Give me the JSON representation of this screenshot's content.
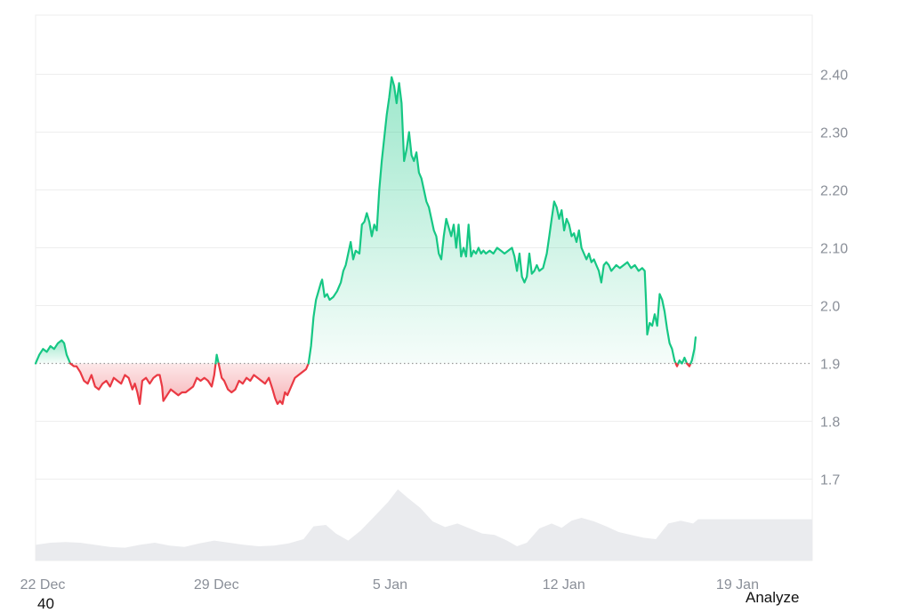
{
  "chart_data": {
    "type": "area",
    "baseline": 1.9,
    "ylim": [
      1.6,
      2.5
    ],
    "yticks": [
      "2.40",
      "2.30",
      "2.20",
      "2.10",
      "2.0",
      "1.9",
      "1.8",
      "1.7"
    ],
    "ytick_values": [
      2.4,
      2.3,
      2.2,
      2.1,
      2.0,
      1.9,
      1.8,
      1.7
    ],
    "xticks": [
      "22 Dec",
      "29 Dec",
      "5 Jan",
      "12 Jan",
      "19 Jan"
    ],
    "xtick_days": [
      0,
      7,
      14,
      21,
      28
    ],
    "xlim_days": [
      0,
      31.3
    ],
    "series": [
      {
        "values": [
          [
            0.0,
            1.9
          ],
          [
            0.15,
            1.915
          ],
          [
            0.3,
            1.925
          ],
          [
            0.45,
            1.92
          ],
          [
            0.6,
            1.93
          ],
          [
            0.75,
            1.925
          ],
          [
            0.9,
            1.935
          ],
          [
            1.05,
            1.94
          ],
          [
            1.15,
            1.935
          ],
          [
            1.25,
            1.915
          ],
          [
            1.4,
            1.9
          ],
          [
            1.55,
            1.895
          ],
          [
            1.65,
            1.895
          ],
          [
            1.8,
            1.885
          ],
          [
            1.95,
            1.87
          ],
          [
            2.1,
            1.865
          ],
          [
            2.25,
            1.88
          ],
          [
            2.4,
            1.86
          ],
          [
            2.55,
            1.855
          ],
          [
            2.7,
            1.865
          ],
          [
            2.85,
            1.87
          ],
          [
            3.0,
            1.86
          ],
          [
            3.15,
            1.875
          ],
          [
            3.3,
            1.87
          ],
          [
            3.45,
            1.865
          ],
          [
            3.6,
            1.88
          ],
          [
            3.75,
            1.875
          ],
          [
            3.9,
            1.855
          ],
          [
            4.0,
            1.865
          ],
          [
            4.1,
            1.85
          ],
          [
            4.2,
            1.83
          ],
          [
            4.3,
            1.87
          ],
          [
            4.45,
            1.875
          ],
          [
            4.6,
            1.865
          ],
          [
            4.75,
            1.875
          ],
          [
            4.9,
            1.88
          ],
          [
            5.0,
            1.88
          ],
          [
            5.1,
            1.86
          ],
          [
            5.15,
            1.835
          ],
          [
            5.3,
            1.845
          ],
          [
            5.45,
            1.855
          ],
          [
            5.6,
            1.85
          ],
          [
            5.75,
            1.845
          ],
          [
            5.9,
            1.85
          ],
          [
            6.05,
            1.85
          ],
          [
            6.2,
            1.855
          ],
          [
            6.35,
            1.86
          ],
          [
            6.5,
            1.875
          ],
          [
            6.65,
            1.87
          ],
          [
            6.8,
            1.875
          ],
          [
            6.95,
            1.87
          ],
          [
            7.1,
            1.86
          ],
          [
            7.2,
            1.88
          ],
          [
            7.3,
            1.915
          ],
          [
            7.4,
            1.895
          ],
          [
            7.5,
            1.875
          ],
          [
            7.6,
            1.87
          ],
          [
            7.75,
            1.855
          ],
          [
            7.9,
            1.85
          ],
          [
            8.05,
            1.855
          ],
          [
            8.2,
            1.87
          ],
          [
            8.35,
            1.865
          ],
          [
            8.5,
            1.875
          ],
          [
            8.65,
            1.87
          ],
          [
            8.8,
            1.88
          ],
          [
            8.95,
            1.875
          ],
          [
            9.1,
            1.87
          ],
          [
            9.25,
            1.865
          ],
          [
            9.4,
            1.875
          ],
          [
            9.55,
            1.855
          ],
          [
            9.65,
            1.84
          ],
          [
            9.75,
            1.83
          ],
          [
            9.85,
            1.835
          ],
          [
            9.95,
            1.83
          ],
          [
            10.05,
            1.85
          ],
          [
            10.15,
            1.845
          ],
          [
            10.3,
            1.86
          ],
          [
            10.45,
            1.875
          ],
          [
            10.6,
            1.88
          ],
          [
            10.75,
            1.885
          ],
          [
            10.9,
            1.89
          ],
          [
            11.0,
            1.9
          ],
          [
            11.1,
            1.93
          ],
          [
            11.2,
            1.98
          ],
          [
            11.3,
            2.01
          ],
          [
            11.4,
            2.025
          ],
          [
            11.5,
            2.04
          ],
          [
            11.55,
            2.045
          ],
          [
            11.65,
            2.015
          ],
          [
            11.75,
            2.02
          ],
          [
            11.85,
            2.01
          ],
          [
            12.0,
            2.015
          ],
          [
            12.15,
            2.025
          ],
          [
            12.3,
            2.04
          ],
          [
            12.4,
            2.06
          ],
          [
            12.5,
            2.07
          ],
          [
            12.6,
            2.09
          ],
          [
            12.7,
            2.11
          ],
          [
            12.8,
            2.08
          ],
          [
            12.9,
            2.095
          ],
          [
            13.05,
            2.09
          ],
          [
            13.15,
            2.14
          ],
          [
            13.25,
            2.145
          ],
          [
            13.35,
            2.16
          ],
          [
            13.45,
            2.145
          ],
          [
            13.55,
            2.12
          ],
          [
            13.65,
            2.14
          ],
          [
            13.75,
            2.13
          ],
          [
            13.85,
            2.2
          ],
          [
            13.95,
            2.25
          ],
          [
            14.05,
            2.29
          ],
          [
            14.15,
            2.33
          ],
          [
            14.25,
            2.36
          ],
          [
            14.35,
            2.395
          ],
          [
            14.45,
            2.38
          ],
          [
            14.55,
            2.35
          ],
          [
            14.65,
            2.385
          ],
          [
            14.75,
            2.35
          ],
          [
            14.85,
            2.25
          ],
          [
            14.95,
            2.27
          ],
          [
            15.05,
            2.3
          ],
          [
            15.15,
            2.26
          ],
          [
            15.25,
            2.25
          ],
          [
            15.35,
            2.265
          ],
          [
            15.45,
            2.23
          ],
          [
            15.55,
            2.22
          ],
          [
            15.65,
            2.2
          ],
          [
            15.75,
            2.18
          ],
          [
            15.85,
            2.17
          ],
          [
            15.95,
            2.15
          ],
          [
            16.05,
            2.13
          ],
          [
            16.15,
            2.12
          ],
          [
            16.25,
            2.09
          ],
          [
            16.35,
            2.08
          ],
          [
            16.45,
            2.12
          ],
          [
            16.55,
            2.15
          ],
          [
            16.65,
            2.135
          ],
          [
            16.75,
            2.12
          ],
          [
            16.85,
            2.14
          ],
          [
            16.95,
            2.1
          ],
          [
            17.05,
            2.14
          ],
          [
            17.15,
            2.085
          ],
          [
            17.25,
            2.1
          ],
          [
            17.35,
            2.085
          ],
          [
            17.45,
            2.14
          ],
          [
            17.55,
            2.085
          ],
          [
            17.65,
            2.095
          ],
          [
            17.75,
            2.09
          ],
          [
            17.85,
            2.1
          ],
          [
            17.95,
            2.09
          ],
          [
            18.05,
            2.095
          ],
          [
            18.15,
            2.09
          ],
          [
            18.3,
            2.095
          ],
          [
            18.45,
            2.09
          ],
          [
            18.6,
            2.1
          ],
          [
            18.75,
            2.095
          ],
          [
            18.9,
            2.09
          ],
          [
            19.05,
            2.095
          ],
          [
            19.2,
            2.1
          ],
          [
            19.3,
            2.085
          ],
          [
            19.4,
            2.06
          ],
          [
            19.5,
            2.09
          ],
          [
            19.6,
            2.05
          ],
          [
            19.7,
            2.04
          ],
          [
            19.8,
            2.05
          ],
          [
            19.9,
            2.09
          ],
          [
            20.0,
            2.055
          ],
          [
            20.1,
            2.06
          ],
          [
            20.2,
            2.07
          ],
          [
            20.3,
            2.06
          ],
          [
            20.45,
            2.065
          ],
          [
            20.6,
            2.09
          ],
          [
            20.7,
            2.12
          ],
          [
            20.8,
            2.15
          ],
          [
            20.9,
            2.18
          ],
          [
            21.0,
            2.17
          ],
          [
            21.1,
            2.15
          ],
          [
            21.2,
            2.165
          ],
          [
            21.3,
            2.13
          ],
          [
            21.4,
            2.15
          ],
          [
            21.5,
            2.14
          ],
          [
            21.6,
            2.12
          ],
          [
            21.7,
            2.125
          ],
          [
            21.8,
            2.11
          ],
          [
            21.9,
            2.13
          ],
          [
            22.0,
            2.1
          ],
          [
            22.1,
            2.09
          ],
          [
            22.2,
            2.08
          ],
          [
            22.3,
            2.09
          ],
          [
            22.4,
            2.075
          ],
          [
            22.5,
            2.08
          ],
          [
            22.6,
            2.07
          ],
          [
            22.7,
            2.06
          ],
          [
            22.8,
            2.04
          ],
          [
            22.9,
            2.07
          ],
          [
            23.0,
            2.075
          ],
          [
            23.1,
            2.07
          ],
          [
            23.2,
            2.06
          ],
          [
            23.3,
            2.065
          ],
          [
            23.4,
            2.07
          ],
          [
            23.55,
            2.065
          ],
          [
            23.7,
            2.07
          ],
          [
            23.85,
            2.075
          ],
          [
            24.0,
            2.065
          ],
          [
            24.15,
            2.07
          ],
          [
            24.3,
            2.06
          ],
          [
            24.45,
            2.065
          ],
          [
            24.55,
            2.06
          ],
          [
            24.6,
            2.01
          ],
          [
            24.65,
            1.95
          ],
          [
            24.75,
            1.97
          ],
          [
            24.85,
            1.965
          ],
          [
            24.95,
            1.985
          ],
          [
            25.05,
            1.965
          ],
          [
            25.15,
            2.02
          ],
          [
            25.25,
            2.01
          ],
          [
            25.35,
            1.99
          ],
          [
            25.45,
            1.96
          ],
          [
            25.55,
            1.935
          ],
          [
            25.65,
            1.925
          ],
          [
            25.75,
            1.905
          ],
          [
            25.85,
            1.895
          ],
          [
            25.95,
            1.905
          ],
          [
            26.05,
            1.9
          ],
          [
            26.15,
            1.91
          ],
          [
            26.25,
            1.9
          ],
          [
            26.35,
            1.895
          ],
          [
            26.45,
            1.905
          ],
          [
            26.55,
            1.925
          ],
          [
            26.6,
            1.945
          ]
        ]
      }
    ],
    "volume": [
      [
        0.0,
        0.22
      ],
      [
        0.6,
        0.25
      ],
      [
        1.2,
        0.26
      ],
      [
        1.8,
        0.25
      ],
      [
        2.4,
        0.22
      ],
      [
        3.0,
        0.19
      ],
      [
        3.6,
        0.18
      ],
      [
        4.2,
        0.22
      ],
      [
        4.8,
        0.25
      ],
      [
        5.4,
        0.21
      ],
      [
        6.0,
        0.19
      ],
      [
        6.6,
        0.24
      ],
      [
        7.2,
        0.28
      ],
      [
        7.8,
        0.25
      ],
      [
        8.4,
        0.22
      ],
      [
        9.0,
        0.2
      ],
      [
        9.6,
        0.21
      ],
      [
        10.2,
        0.24
      ],
      [
        10.8,
        0.3
      ],
      [
        11.2,
        0.48
      ],
      [
        11.7,
        0.5
      ],
      [
        12.1,
        0.38
      ],
      [
        12.6,
        0.28
      ],
      [
        13.1,
        0.42
      ],
      [
        13.6,
        0.6
      ],
      [
        14.2,
        0.82
      ],
      [
        14.6,
        1.0
      ],
      [
        15.0,
        0.88
      ],
      [
        15.5,
        0.74
      ],
      [
        16.0,
        0.55
      ],
      [
        16.5,
        0.47
      ],
      [
        17.0,
        0.52
      ],
      [
        17.5,
        0.45
      ],
      [
        18.0,
        0.38
      ],
      [
        18.5,
        0.36
      ],
      [
        19.0,
        0.28
      ],
      [
        19.4,
        0.2
      ],
      [
        19.8,
        0.25
      ],
      [
        20.3,
        0.45
      ],
      [
        20.8,
        0.52
      ],
      [
        21.2,
        0.46
      ],
      [
        21.6,
        0.56
      ],
      [
        22.0,
        0.6
      ],
      [
        22.5,
        0.55
      ],
      [
        23.0,
        0.48
      ],
      [
        23.5,
        0.4
      ],
      [
        24.0,
        0.36
      ],
      [
        24.5,
        0.32
      ],
      [
        25.0,
        0.3
      ],
      [
        25.5,
        0.52
      ],
      [
        26.0,
        0.56
      ],
      [
        26.5,
        0.52
      ],
      [
        26.7,
        0.58
      ]
    ],
    "colors": {
      "up_line": "#16c784",
      "down_line": "#ea3943",
      "grid": "#eeeeee",
      "baseline": "#9a9a9a",
      "volume": "#eaebee"
    }
  },
  "footer": {
    "analyze": "Analyze",
    "stray_label": "40"
  }
}
